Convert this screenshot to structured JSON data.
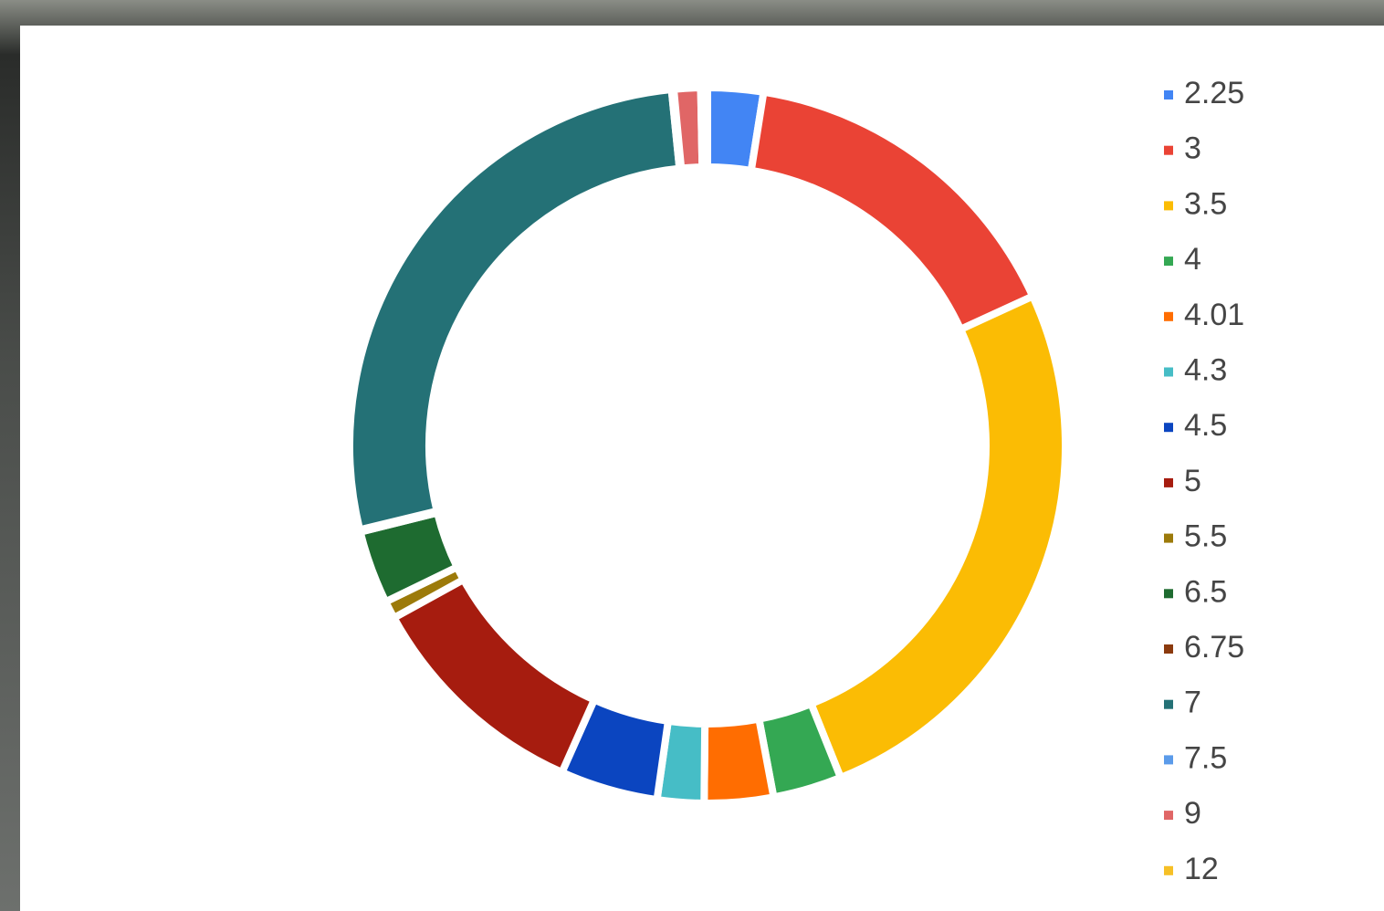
{
  "chart_data": {
    "type": "donut",
    "categories": [
      "2.25",
      "3",
      "3.5",
      "4",
      "4.01",
      "4.3",
      "4.5",
      "5",
      "5.5",
      "6.5",
      "6.75",
      "7",
      "7.5",
      "9",
      "12"
    ],
    "values": [
      2.5,
      15.6,
      25.7,
      3.1,
      3.1,
      2.1,
      4.4,
      10.3,
      0.8,
      3.3,
      0.1,
      27.1,
      0.1,
      1.2,
      0.3
    ],
    "colors": [
      "#4285f4",
      "#ea4335",
      "#fbbc04",
      "#34a853",
      "#ff6d01",
      "#46bdc6",
      "#0b45c0",
      "#a61c0f",
      "#9c7a0a",
      "#1e6b30",
      "#8b3a0e",
      "#247176",
      "#5b9bea",
      "#e06666",
      "#f6c026"
    ],
    "legend": "right"
  }
}
